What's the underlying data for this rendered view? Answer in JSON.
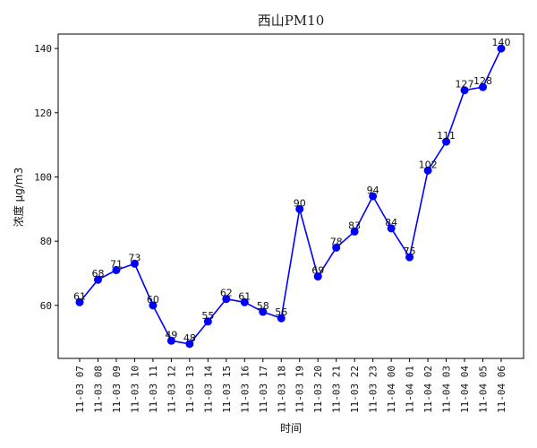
{
  "chart_data": {
    "type": "line",
    "title": "西山PM10",
    "xlabel": "时间",
    "ylabel": "浓度 μg/m3",
    "categories": [
      "11-03 07",
      "11-03 08",
      "11-03 09",
      "11-03 10",
      "11-03 11",
      "11-03 12",
      "11-03 13",
      "11-03 14",
      "11-03 15",
      "11-03 16",
      "11-03 17",
      "11-03 18",
      "11-03 19",
      "11-03 20",
      "11-03 21",
      "11-03 22",
      "11-03 23",
      "11-04 00",
      "11-04 01",
      "11-04 02",
      "11-04 03",
      "11-04 04",
      "11-04 05",
      "11-04 06"
    ],
    "series": [
      {
        "values": [
          61,
          68,
          71,
          73,
          60,
          49,
          48,
          55,
          62,
          61,
          58,
          56,
          90,
          69,
          78,
          83,
          94,
          84,
          75,
          102,
          111,
          127,
          128,
          140
        ],
        "color": "#0000ff"
      }
    ],
    "ylim": [
      43.5,
      144.5
    ],
    "yticks": [
      60,
      80,
      100,
      120,
      140
    ],
    "grid": false,
    "legend": "none",
    "show_data_labels": true
  }
}
